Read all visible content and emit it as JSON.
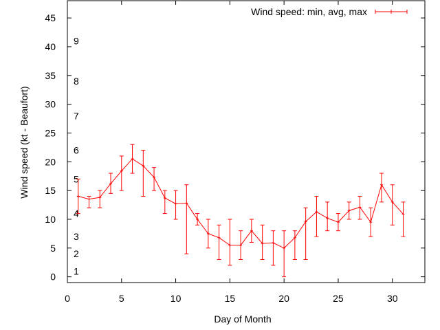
{
  "chart_data": {
    "type": "line",
    "title": "",
    "xlabel": "Day of Month",
    "ylabel": "Wind speed (kt - Beaufort)",
    "xlim": [
      0,
      33
    ],
    "ylim": [
      -1,
      48
    ],
    "x_ticks": [
      0,
      5,
      10,
      15,
      20,
      25,
      30
    ],
    "y_ticks": [
      0,
      5,
      10,
      15,
      20,
      25,
      30,
      35,
      40,
      45
    ],
    "grid": false,
    "legend_position": "top-right",
    "series": [
      {
        "name": "Wind speed: min, avg, max",
        "color": "#ff0000",
        "x": [
          1,
          2,
          3,
          4,
          5,
          6,
          7,
          8,
          9,
          10,
          11,
          12,
          13,
          14,
          15,
          16,
          17,
          18,
          19,
          20,
          21,
          22,
          23,
          24,
          25,
          26,
          27,
          28,
          29,
          30,
          31
        ],
        "avg": [
          14,
          13.5,
          13.8,
          16.2,
          18.4,
          20.5,
          19.3,
          17.3,
          13.7,
          12.7,
          12.8,
          10,
          7.5,
          6.8,
          5.5,
          5.5,
          8,
          5.8,
          5.9,
          5,
          6.8,
          9.6,
          11.3,
          10.2,
          9.5,
          11.5,
          12.1,
          9.5,
          16,
          13,
          10.9
        ],
        "min": [
          11,
          12,
          12,
          14.5,
          15,
          18,
          14,
          15,
          11,
          10,
          4,
          9,
          5,
          3,
          2,
          3,
          6,
          3,
          2,
          0,
          3,
          3,
          7,
          8,
          8,
          10,
          10,
          7,
          13,
          9,
          7
        ],
        "max": [
          17,
          14,
          15,
          18,
          21,
          23,
          22,
          19,
          15,
          15,
          16,
          11,
          10,
          9,
          10,
          8,
          10,
          9,
          8,
          8,
          8,
          12,
          14,
          13,
          11,
          13,
          14,
          12,
          18,
          16,
          13
        ]
      }
    ],
    "annotations": [
      {
        "text": "1",
        "y": 1
      },
      {
        "text": "2",
        "y": 4
      },
      {
        "text": "3",
        "y": 7
      },
      {
        "text": "4",
        "y": 11
      },
      {
        "text": "5",
        "y": 17
      },
      {
        "text": "6",
        "y": 22
      },
      {
        "text": "7",
        "y": 28
      },
      {
        "text": "8",
        "y": 34
      },
      {
        "text": "9",
        "y": 41
      }
    ]
  }
}
